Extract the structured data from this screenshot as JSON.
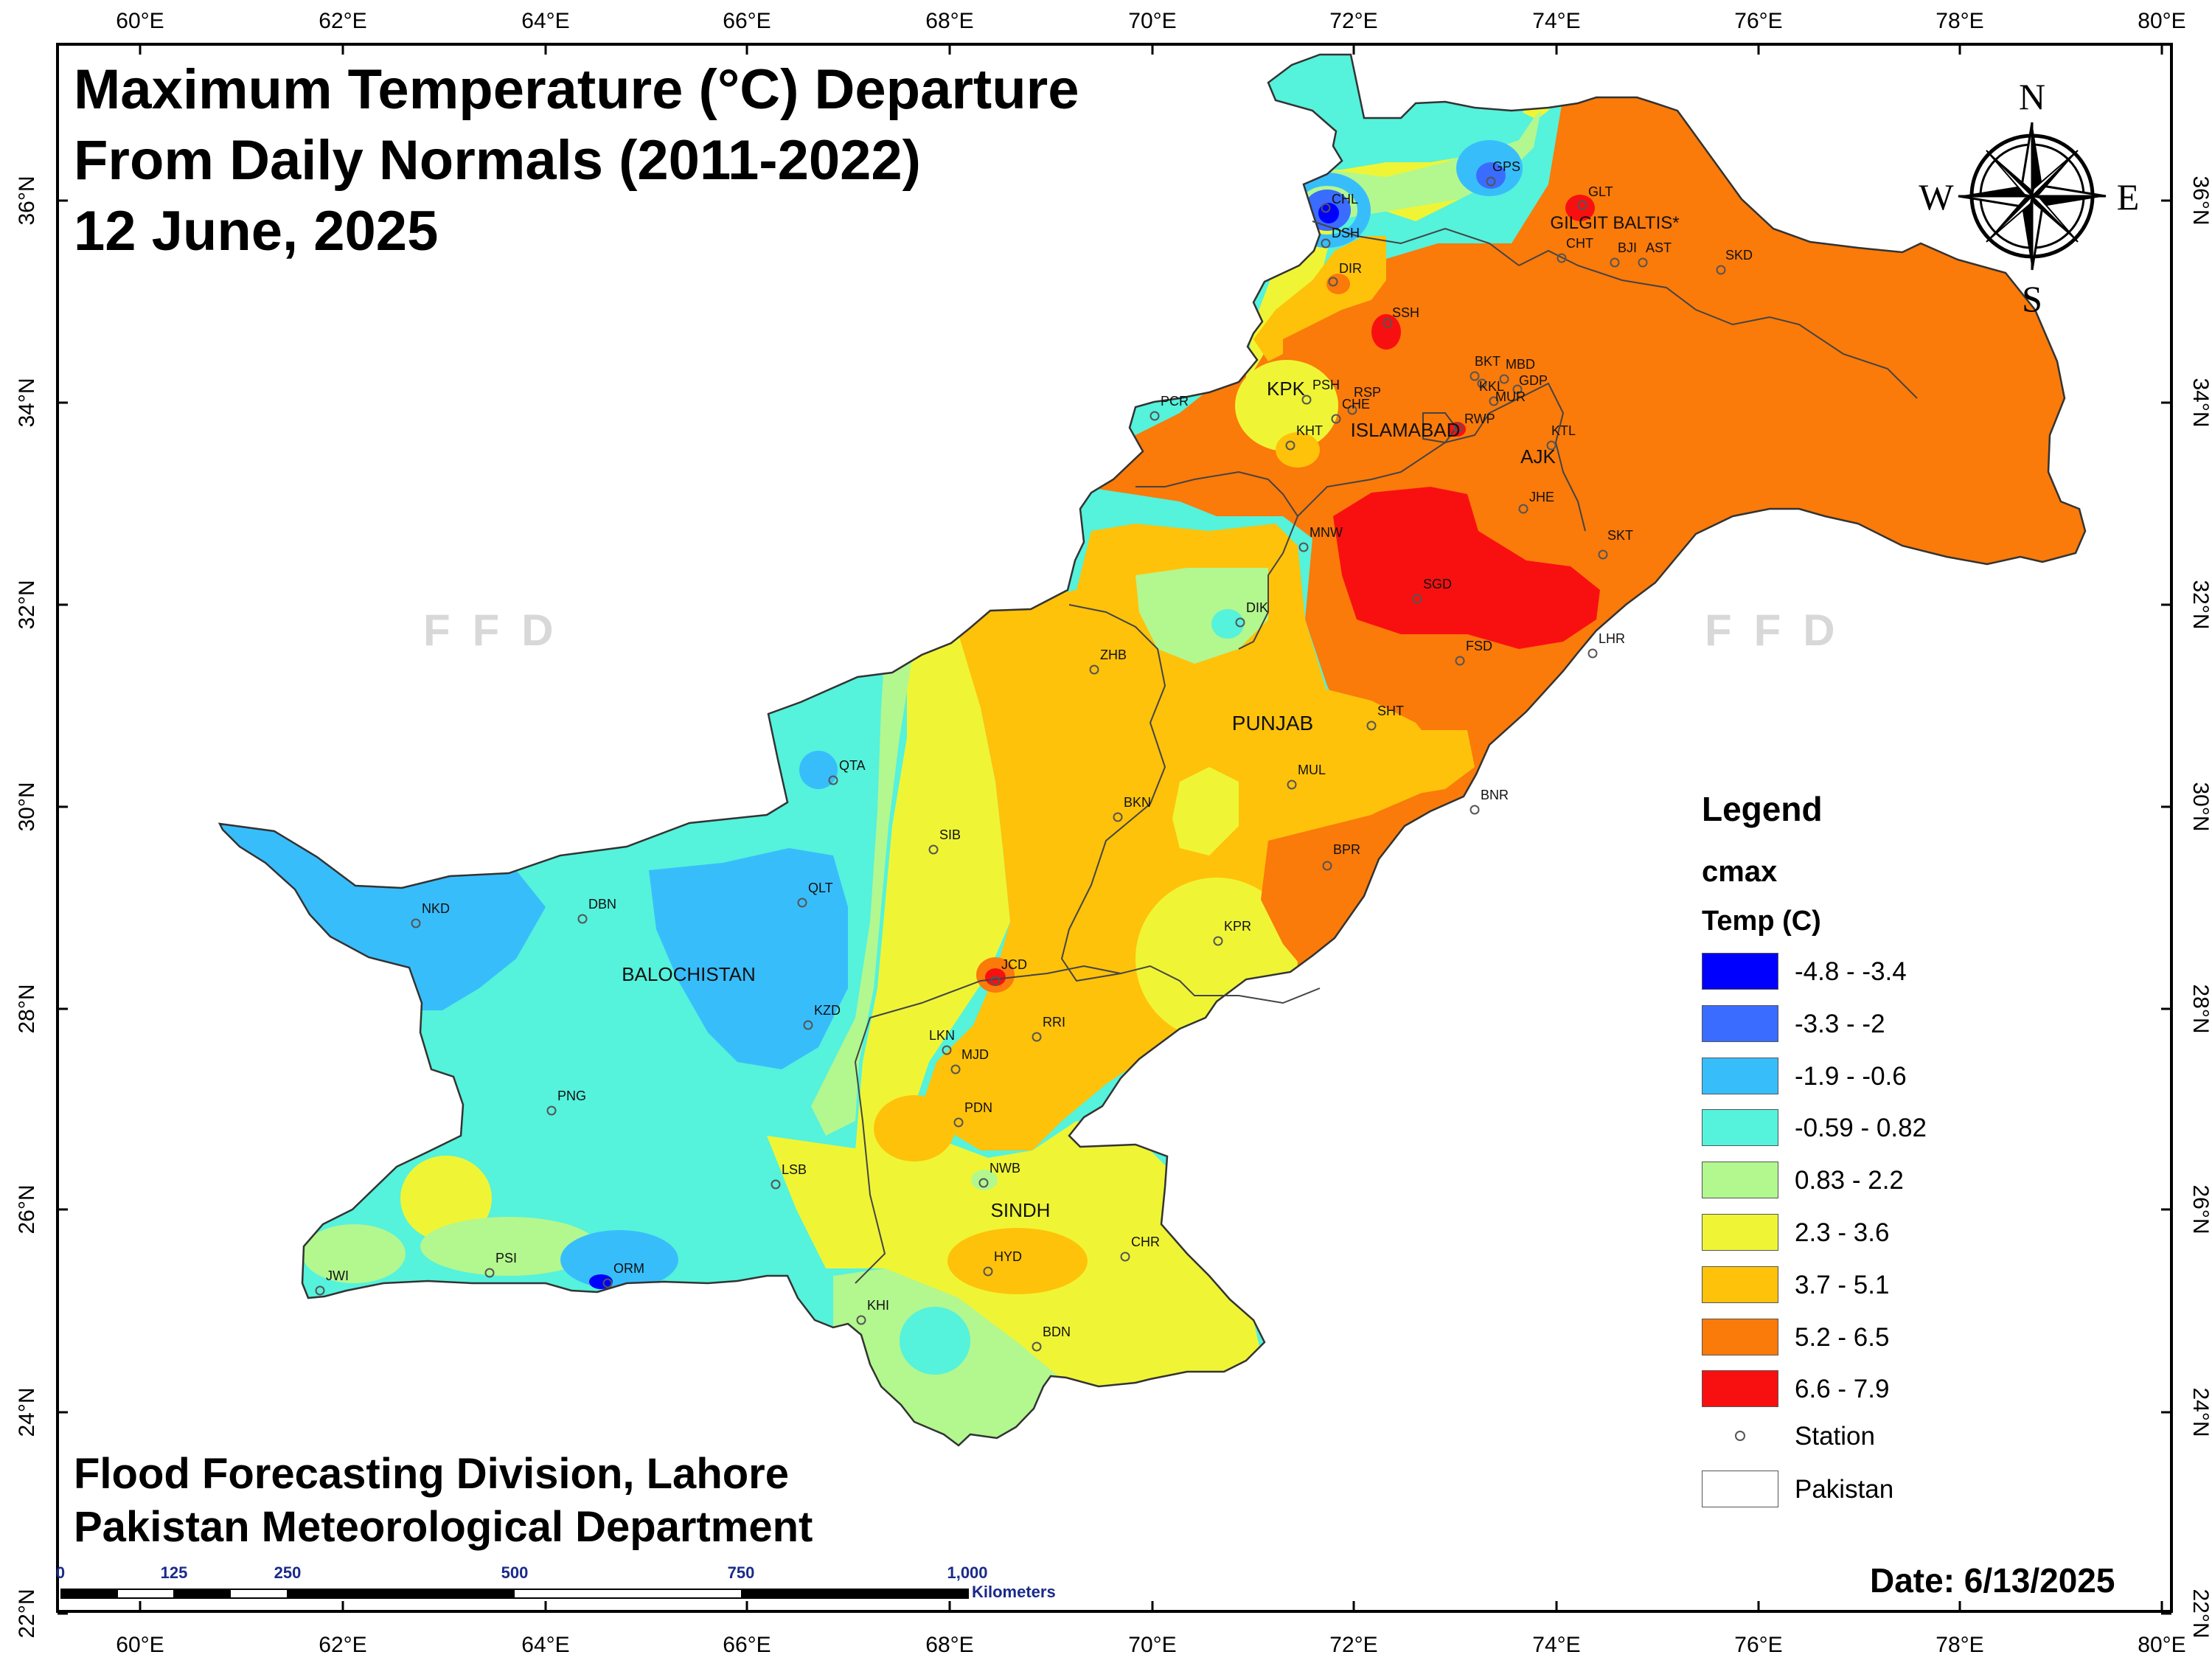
{
  "title": {
    "line1": "Maximum Temperature (°C) Departure",
    "line2": "From Daily Normals (2011-2022)",
    "line3": "12 June, 2025"
  },
  "credits": {
    "line1": "Flood Forecasting Division, Lahore",
    "line2": "Pakistan Meteorological Department"
  },
  "date_label": "Date: 6/13/2025",
  "watermark": "FFD",
  "compass": {
    "n": "N",
    "s": "S",
    "e": "E",
    "w": "W"
  },
  "axes": {
    "longitude_ticks": [
      "60°E",
      "62°E",
      "64°E",
      "66°E",
      "68°E",
      "70°E",
      "72°E",
      "74°E",
      "76°E",
      "78°E",
      "80°E"
    ],
    "latitude_ticks": [
      "36°N",
      "34°N",
      "32°N",
      "30°N",
      "28°N",
      "26°N",
      "24°N",
      "22°N"
    ]
  },
  "scale_bar": {
    "labels": [
      "0",
      "125",
      "250",
      "500",
      "750",
      "1,000"
    ],
    "unit": "Kilometers"
  },
  "legend": {
    "title": "Legend",
    "field": "cmax",
    "subtitle": "Temp (C)",
    "classes": [
      {
        "label": "-4.8 - -3.4",
        "color": "#0000ff"
      },
      {
        "label": "-3.3 - -2",
        "color": "#3a6cff"
      },
      {
        "label": "-1.9 - -0.6",
        "color": "#38bdfb"
      },
      {
        "label": "-0.59 - 0.82",
        "color": "#55f2dc"
      },
      {
        "label": "0.83 - 2.2",
        "color": "#b3f78f"
      },
      {
        "label": "2.3 - 3.6",
        "color": "#eff535"
      },
      {
        "label": "3.7 - 5.1",
        "color": "#fec20a"
      },
      {
        "label": "5.2 - 6.5",
        "color": "#fa7a0a"
      },
      {
        "label": "6.6 - 7.9",
        "color": "#f81010"
      }
    ],
    "station_label": "Station",
    "boundary_label": "Pakistan"
  },
  "regions": [
    "GILGIT BALTIS*",
    "KPK",
    "ISLAMABAD",
    "AJK",
    "PUNJAB",
    "BALOCHISTAN",
    "SINDH"
  ],
  "stations": [
    "CHL",
    "DSH",
    "GPS",
    "GLT",
    "DIR",
    "CHT",
    "BJI",
    "AST",
    "SKD",
    "SSH",
    "BKT",
    "MBD",
    "KKL",
    "GDP",
    "PSH",
    "RSP",
    "MUR",
    "CHE",
    "PCR",
    "KHT",
    "RWP",
    "KTL",
    "JHE",
    "SKT",
    "MNW",
    "SGD",
    "DIK",
    "FSD",
    "LHR",
    "ZHB",
    "SHT",
    "QTA",
    "MUL",
    "BKN",
    "BNR",
    "SIB",
    "BPR",
    "QLT",
    "NKD",
    "DBN",
    "KPR",
    "JCD",
    "KZD",
    "RRI",
    "LKN",
    "MJD",
    "PNG",
    "PDN",
    "LSB",
    "NWB",
    "HYD",
    "CHR",
    "JWI",
    "PSI",
    "ORM",
    "KHI",
    "BDN"
  ]
}
